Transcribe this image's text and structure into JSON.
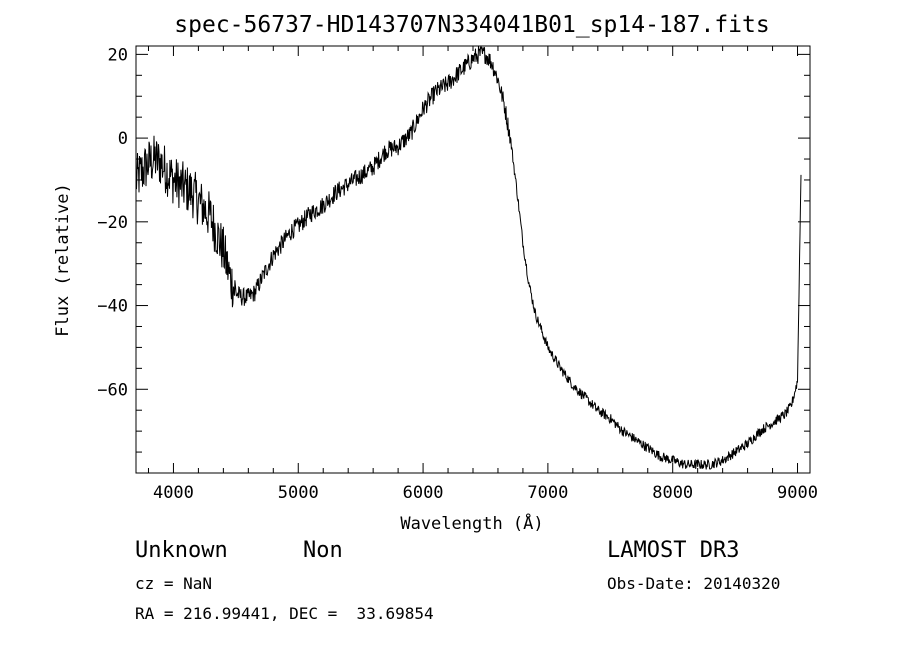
{
  "chart_data": {
    "type": "line",
    "title": "spec-56737-HD143707N334041B01_sp14-187.fits",
    "xlabel": "Wavelength (Å)",
    "ylabel": "Flux (relative)",
    "xlim": [
      3700,
      9100
    ],
    "ylim": [
      -80,
      22
    ],
    "x_ticks": [
      4000,
      5000,
      6000,
      7000,
      8000,
      9000
    ],
    "y_ticks": [
      20,
      0,
      -20,
      -40,
      -60
    ],
    "grid": false,
    "series": [
      {
        "x": [
          3700,
          3750,
          3800,
          3850,
          3900,
          3950,
          4000,
          4050,
          4100,
          4150,
          4200,
          4250,
          4300,
          4350,
          4400,
          4450,
          4500,
          4550,
          4600,
          4650,
          4700,
          4750,
          4800,
          4850,
          4900,
          4950,
          5000,
          5100,
          5200,
          5300,
          5400,
          5500,
          5600,
          5700,
          5800,
          5900,
          6000,
          6100,
          6200,
          6300,
          6400,
          6450,
          6500,
          6550,
          6600,
          6650,
          6700,
          6750,
          6800,
          6850,
          6900,
          6950,
          7000,
          7100,
          7200,
          7300,
          7400,
          7500,
          7600,
          7700,
          7800,
          7900,
          8000,
          8100,
          8200,
          8300,
          8400,
          8500,
          8600,
          8700,
          8800,
          8900,
          8950,
          9000,
          9030
        ],
        "y": [
          -10,
          -8,
          -6,
          -5,
          -6,
          -8,
          -10,
          -11,
          -12,
          -13,
          -15,
          -17,
          -19,
          -23,
          -27,
          -33,
          -37,
          -38,
          -38,
          -37,
          -34,
          -31,
          -28,
          -26,
          -24,
          -22,
          -21,
          -18,
          -16,
          -13,
          -11,
          -9,
          -7,
          -3,
          -2,
          1,
          7,
          11,
          13,
          16,
          19,
          20,
          20,
          18,
          14,
          8,
          0,
          -12,
          -25,
          -35,
          -42,
          -46,
          -50,
          -55,
          -59,
          -62,
          -65,
          -67,
          -70,
          -72,
          -74,
          -76,
          -77,
          -78,
          -78,
          -78,
          -77,
          -75,
          -73,
          -70,
          -68,
          -66,
          -64,
          -58,
          -5
        ]
      }
    ]
  },
  "info": {
    "object_name": "Unknown",
    "object_class": "Non",
    "survey": "LAMOST DR3",
    "cz": "cz = NaN",
    "obs_date": "Obs-Date: 20140320",
    "coords": "RA = 216.99441, DEC =  33.69854"
  }
}
